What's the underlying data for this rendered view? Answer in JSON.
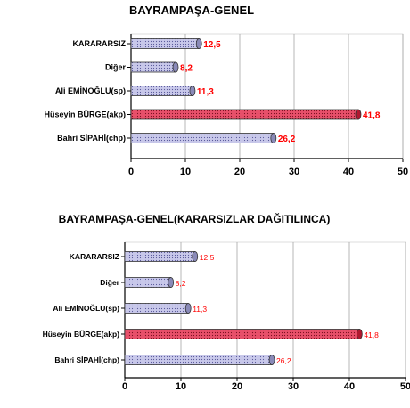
{
  "chart_data": [
    {
      "type": "bar",
      "orientation": "horizontal",
      "title": "BAYRAMPAŞA-GENEL",
      "categories": [
        "KARARARSIZ",
        "Diğer",
        "Ali EMİNOĞLU(sp)",
        "Hüseyin BÜRGE(akp)",
        "Bahri SİPAHİ(chp)"
      ],
      "values": [
        12.5,
        8.2,
        11.3,
        41.8,
        26.2
      ],
      "value_labels": [
        "12,5",
        "8,2",
        "11,3",
        "41,8",
        "26,2"
      ],
      "ticks": [
        "0",
        "10",
        "20",
        "30",
        "40",
        "50"
      ],
      "xlim": [
        0,
        50
      ],
      "grid": true,
      "colors": {
        "default": "#b0b0d8",
        "highlight": "#e03050",
        "label": "#ff0000"
      },
      "highlight_index": 3,
      "legend": "none"
    },
    {
      "type": "bar",
      "orientation": "horizontal",
      "title": "BAYRAMPAŞA-GENEL(KARARSIZLAR DAĞITILINCA)",
      "categories": [
        "KARARARSIZ",
        "Diğer",
        "Ali EMİNOĞLU(sp)",
        "Hüseyin BÜRGE(akp)",
        "Bahri SİPAHİ(chp)"
      ],
      "values": [
        12.5,
        8.2,
        11.3,
        41.8,
        26.2
      ],
      "value_labels": [
        "12,5",
        "8,2",
        "11,3",
        "41,8",
        "26,2"
      ],
      "ticks": [
        "0",
        "10",
        "20",
        "30",
        "40",
        "50"
      ],
      "xlim": [
        0,
        50
      ],
      "grid": true,
      "colors": {
        "default": "#b0b0d8",
        "highlight": "#e03050",
        "label": "#ff0000"
      },
      "highlight_index": 3,
      "legend": "none"
    }
  ]
}
